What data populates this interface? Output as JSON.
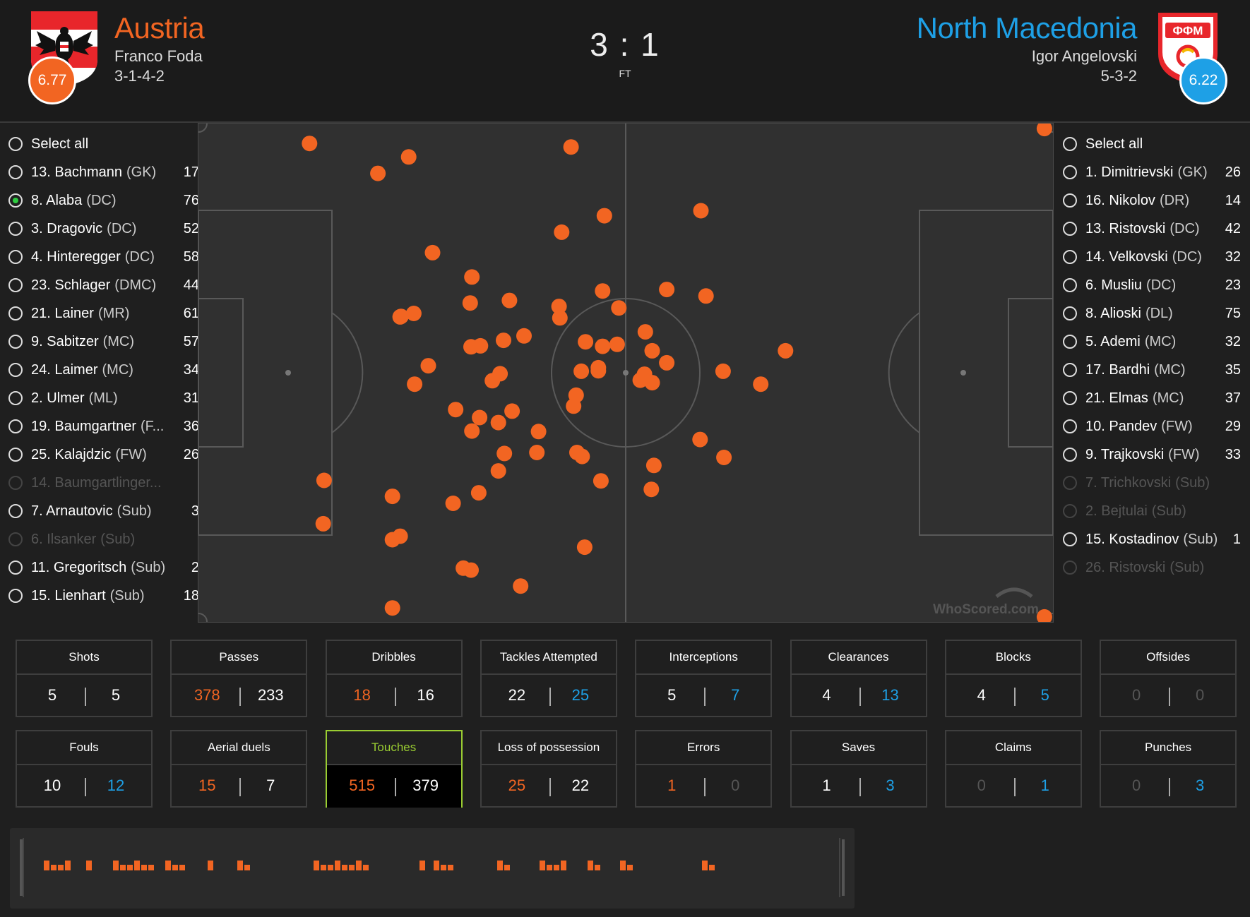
{
  "header": {
    "home": {
      "name": "Austria",
      "manager": "Franco Foda",
      "formation": "3-1-4-2",
      "rating": "6.77"
    },
    "away": {
      "name": "North Macedonia",
      "manager": "Igor Angelovski",
      "formation": "5-3-2",
      "rating": "6.22"
    },
    "score": "3 : 1",
    "status": "FT",
    "home_crest_text": "",
    "away_crest_text": "ФФМ"
  },
  "home_players": [
    {
      "label": "Select all",
      "pos": "",
      "count": "",
      "state": "normal"
    },
    {
      "label": "13. Bachmann",
      "pos": "(GK)",
      "count": "17",
      "state": "normal"
    },
    {
      "label": "8. Alaba",
      "pos": "(DC)",
      "count": "76",
      "state": "selected"
    },
    {
      "label": "3. Dragovic",
      "pos": "(DC)",
      "count": "52",
      "state": "normal"
    },
    {
      "label": "4. Hinteregger",
      "pos": "(DC)",
      "count": "58",
      "state": "normal"
    },
    {
      "label": "23. Schlager",
      "pos": "(DMC)",
      "count": "44",
      "state": "normal"
    },
    {
      "label": "21. Lainer",
      "pos": "(MR)",
      "count": "61",
      "state": "normal"
    },
    {
      "label": "9. Sabitzer",
      "pos": "(MC)",
      "count": "57",
      "state": "normal"
    },
    {
      "label": "24. Laimer",
      "pos": "(MC)",
      "count": "34",
      "state": "normal"
    },
    {
      "label": "2. Ulmer",
      "pos": "(ML)",
      "count": "31",
      "state": "normal"
    },
    {
      "label": "19. Baumgartner",
      "pos": "(F...",
      "count": "36",
      "state": "normal"
    },
    {
      "label": "25. Kalajdzic",
      "pos": "(FW)",
      "count": "26",
      "state": "normal"
    },
    {
      "label": "14. Baumgartlinger...",
      "pos": "",
      "count": "",
      "state": "disabled"
    },
    {
      "label": "7. Arnautovic",
      "pos": "(Sub)",
      "count": "3",
      "state": "normal"
    },
    {
      "label": "6. Ilsanker",
      "pos": "(Sub)",
      "count": "",
      "state": "disabled"
    },
    {
      "label": "11. Gregoritsch",
      "pos": "(Sub)",
      "count": "2",
      "state": "normal"
    },
    {
      "label": "15. Lienhart",
      "pos": "(Sub)",
      "count": "18",
      "state": "normal"
    }
  ],
  "away_players": [
    {
      "label": "Select all",
      "pos": "",
      "count": "",
      "state": "normal"
    },
    {
      "label": "1. Dimitrievski",
      "pos": "(GK)",
      "count": "26",
      "state": "normal"
    },
    {
      "label": "16. Nikolov",
      "pos": "(DR)",
      "count": "14",
      "state": "normal"
    },
    {
      "label": "13. Ristovski",
      "pos": "(DC)",
      "count": "42",
      "state": "normal"
    },
    {
      "label": "14. Velkovski",
      "pos": "(DC)",
      "count": "32",
      "state": "normal"
    },
    {
      "label": "6. Musliu",
      "pos": "(DC)",
      "count": "23",
      "state": "normal"
    },
    {
      "label": "8. Alioski",
      "pos": "(DL)",
      "count": "75",
      "state": "normal"
    },
    {
      "label": "5. Ademi",
      "pos": "(MC)",
      "count": "32",
      "state": "normal"
    },
    {
      "label": "17. Bardhi",
      "pos": "(MC)",
      "count": "35",
      "state": "normal"
    },
    {
      "label": "21. Elmas",
      "pos": "(MC)",
      "count": "37",
      "state": "normal"
    },
    {
      "label": "10. Pandev",
      "pos": "(FW)",
      "count": "29",
      "state": "normal"
    },
    {
      "label": "9. Trajkovski",
      "pos": "(FW)",
      "count": "33",
      "state": "normal"
    },
    {
      "label": "7. Trichkovski",
      "pos": "(Sub)",
      "count": "",
      "state": "disabled"
    },
    {
      "label": "2. Bejtulai",
      "pos": "(Sub)",
      "count": "",
      "state": "disabled"
    },
    {
      "label": "15. Kostadinov",
      "pos": "(Sub)",
      "count": "1",
      "state": "normal"
    },
    {
      "label": "26. Ristovski",
      "pos": "(Sub)",
      "count": "",
      "state": "disabled"
    }
  ],
  "pitch": {
    "watermark": "WhoScored.com",
    "touches": [
      [
        0.13,
        0.04
      ],
      [
        0.21,
        0.1
      ],
      [
        0.246,
        0.067
      ],
      [
        0.436,
        0.047
      ],
      [
        0.99,
        0.01
      ],
      [
        0.475,
        0.185
      ],
      [
        0.588,
        0.175
      ],
      [
        0.425,
        0.218
      ],
      [
        0.274,
        0.259
      ],
      [
        0.32,
        0.308
      ],
      [
        0.318,
        0.36
      ],
      [
        0.364,
        0.355
      ],
      [
        0.422,
        0.367
      ],
      [
        0.423,
        0.39
      ],
      [
        0.473,
        0.336
      ],
      [
        0.492,
        0.37
      ],
      [
        0.548,
        0.333
      ],
      [
        0.594,
        0.346
      ],
      [
        0.237,
        0.387
      ],
      [
        0.236,
        0.388
      ],
      [
        0.252,
        0.381
      ],
      [
        0.319,
        0.448
      ],
      [
        0.33,
        0.446
      ],
      [
        0.357,
        0.435
      ],
      [
        0.381,
        0.426
      ],
      [
        0.453,
        0.438
      ],
      [
        0.473,
        0.447
      ],
      [
        0.49,
        0.443
      ],
      [
        0.523,
        0.418
      ],
      [
        0.531,
        0.456
      ],
      [
        0.548,
        0.48
      ],
      [
        0.687,
        0.456
      ],
      [
        0.269,
        0.486
      ],
      [
        0.253,
        0.523
      ],
      [
        0.353,
        0.502
      ],
      [
        0.344,
        0.516
      ],
      [
        0.448,
        0.497
      ],
      [
        0.468,
        0.496
      ],
      [
        0.468,
        0.49
      ],
      [
        0.522,
        0.503
      ],
      [
        0.517,
        0.515
      ],
      [
        0.531,
        0.52
      ],
      [
        0.614,
        0.497
      ],
      [
        0.658,
        0.523
      ],
      [
        0.301,
        0.574
      ],
      [
        0.329,
        0.59
      ],
      [
        0.367,
        0.577
      ],
      [
        0.351,
        0.6
      ],
      [
        0.32,
        0.617
      ],
      [
        0.398,
        0.618
      ],
      [
        0.442,
        0.545
      ],
      [
        0.439,
        0.567
      ],
      [
        0.358,
        0.662
      ],
      [
        0.396,
        0.66
      ],
      [
        0.443,
        0.66
      ],
      [
        0.449,
        0.668
      ],
      [
        0.587,
        0.634
      ],
      [
        0.615,
        0.67
      ],
      [
        0.351,
        0.697
      ],
      [
        0.533,
        0.686
      ],
      [
        0.53,
        0.734
      ],
      [
        0.147,
        0.716
      ],
      [
        0.227,
        0.748
      ],
      [
        0.298,
        0.762
      ],
      [
        0.328,
        0.741
      ],
      [
        0.471,
        0.717
      ],
      [
        0.146,
        0.803
      ],
      [
        0.227,
        0.835
      ],
      [
        0.236,
        0.828
      ],
      [
        0.452,
        0.85
      ],
      [
        0.31,
        0.892
      ],
      [
        0.319,
        0.896
      ],
      [
        0.377,
        0.928
      ],
      [
        0.227,
        0.972
      ],
      [
        0.99,
        0.99
      ]
    ]
  },
  "stats": [
    {
      "title": "Shots",
      "home": "5",
      "away": "5",
      "home_color": "white",
      "away_color": "white",
      "highlight": false
    },
    {
      "title": "Passes",
      "home": "378",
      "away": "233",
      "home_color": "home",
      "away_color": "white",
      "highlight": false
    },
    {
      "title": "Dribbles",
      "home": "18",
      "away": "16",
      "home_color": "home",
      "away_color": "white",
      "highlight": false
    },
    {
      "title": "Tackles Attempted",
      "home": "22",
      "away": "25",
      "home_color": "white",
      "away_color": "away",
      "highlight": false
    },
    {
      "title": "Interceptions",
      "home": "5",
      "away": "7",
      "home_color": "white",
      "away_color": "away",
      "highlight": false
    },
    {
      "title": "Clearances",
      "home": "4",
      "away": "13",
      "home_color": "white",
      "away_color": "away",
      "highlight": false
    },
    {
      "title": "Blocks",
      "home": "4",
      "away": "5",
      "home_color": "white",
      "away_color": "away",
      "highlight": false
    },
    {
      "title": "Offsides",
      "home": "0",
      "away": "0",
      "home_color": "dim",
      "away_color": "dim",
      "highlight": false
    },
    {
      "title": "Fouls",
      "home": "10",
      "away": "12",
      "home_color": "white",
      "away_color": "away",
      "highlight": false
    },
    {
      "title": "Aerial duels",
      "home": "15",
      "away": "7",
      "home_color": "home",
      "away_color": "white",
      "highlight": false
    },
    {
      "title": "Touches",
      "home": "515",
      "away": "379",
      "home_color": "home",
      "away_color": "white",
      "highlight": true
    },
    {
      "title": "Loss of possession",
      "home": "25",
      "away": "22",
      "home_color": "home",
      "away_color": "white",
      "highlight": false
    },
    {
      "title": "Errors",
      "home": "1",
      "away": "0",
      "home_color": "home",
      "away_color": "dim",
      "highlight": false
    },
    {
      "title": "Saves",
      "home": "1",
      "away": "3",
      "home_color": "white",
      "away_color": "away",
      "highlight": false
    },
    {
      "title": "Claims",
      "home": "0",
      "away": "1",
      "home_color": "dim",
      "away_color": "away",
      "highlight": false
    },
    {
      "title": "Punches",
      "home": "0",
      "away": "3",
      "home_color": "dim",
      "away_color": "away",
      "highlight": false
    }
  ],
  "colors": {
    "home": "#f26522",
    "away": "#1ea0e6",
    "highlight": "#9acd32"
  }
}
